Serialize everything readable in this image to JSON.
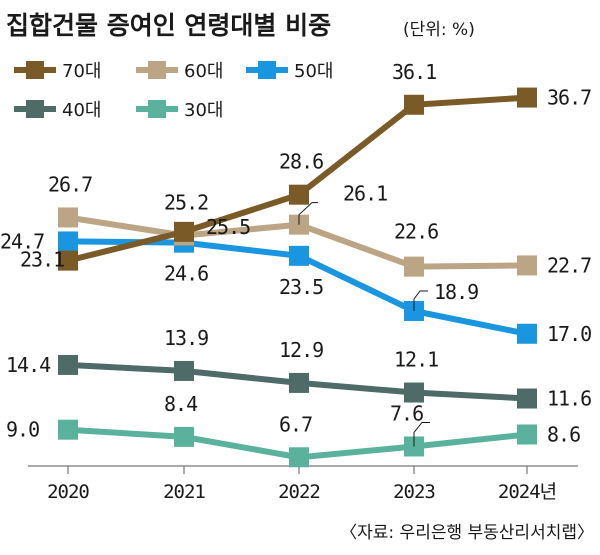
{
  "title": "집합건물 증여인 연령대별 비중",
  "unit": "(단위: %)",
  "source": "〈자료: 우리은행 부동산리서치랩〉",
  "chart_data": {
    "type": "line",
    "categories": [
      "2020",
      "2021",
      "2022",
      "2023",
      "2024년"
    ],
    "ylim": [
      0,
      40
    ],
    "grid": false,
    "legend_position": "top-left",
    "series": [
      {
        "name": "70대",
        "color": "#7a5a26",
        "values": [
          23.1,
          25.5,
          28.6,
          36.1,
          36.7
        ]
      },
      {
        "name": "60대",
        "color": "#bca585",
        "values": [
          26.7,
          25.2,
          26.1,
          22.6,
          22.7
        ]
      },
      {
        "name": "50대",
        "color": "#1a96e0",
        "values": [
          24.7,
          24.6,
          23.5,
          18.9,
          17.0
        ]
      },
      {
        "name": "40대",
        "color": "#4f6b68",
        "values": [
          14.4,
          13.9,
          12.9,
          12.1,
          11.6
        ]
      },
      {
        "name": "30대",
        "color": "#5bb29c",
        "values": [
          9.0,
          8.4,
          6.7,
          7.6,
          8.6
        ]
      }
    ]
  }
}
